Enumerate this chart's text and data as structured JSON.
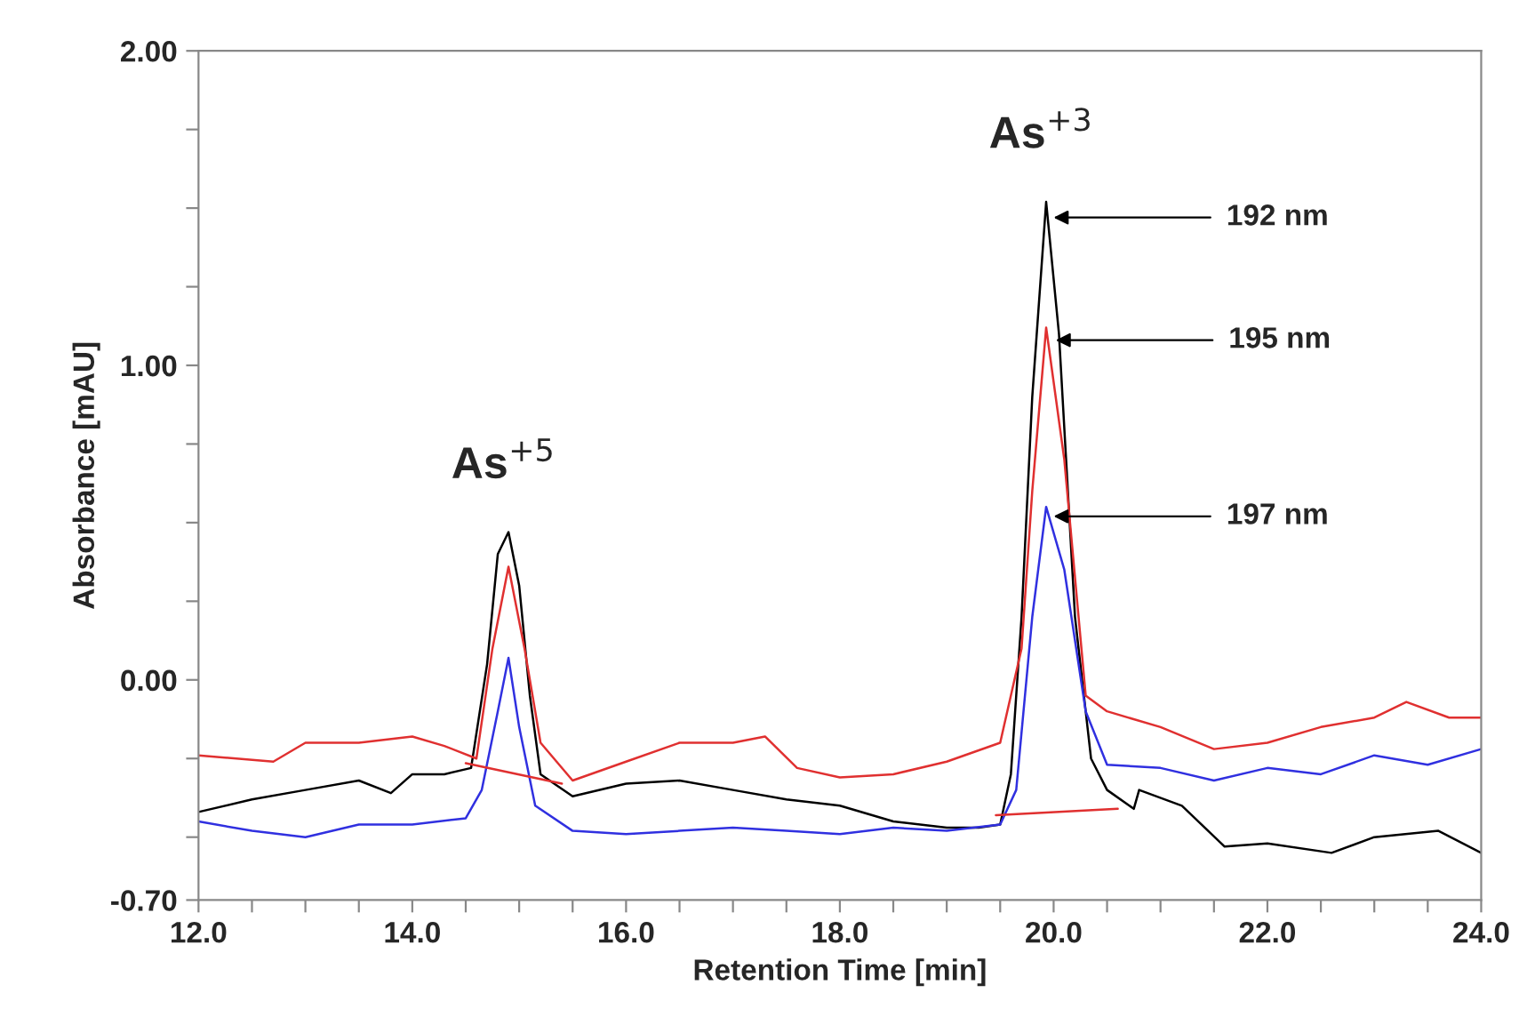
{
  "chart_data": {
    "type": "line",
    "xlabel": "Retention Time [min]",
    "ylabel": "Absorbance [mAU]",
    "xlim": [
      12.0,
      24.0
    ],
    "ylim": [
      -0.7,
      2.0
    ],
    "xticks": [
      {
        "value": 12.0,
        "label": "12.0"
      },
      {
        "value": 12.5,
        "label": null
      },
      {
        "value": 13.0,
        "label": null
      },
      {
        "value": 13.5,
        "label": null
      },
      {
        "value": 14.0,
        "label": "14.0"
      },
      {
        "value": 14.5,
        "label": null
      },
      {
        "value": 15.0,
        "label": null
      },
      {
        "value": 15.5,
        "label": null
      },
      {
        "value": 16.0,
        "label": "16.0"
      },
      {
        "value": 16.5,
        "label": null
      },
      {
        "value": 17.0,
        "label": null
      },
      {
        "value": 17.5,
        "label": null
      },
      {
        "value": 18.0,
        "label": "18.0"
      },
      {
        "value": 18.5,
        "label": null
      },
      {
        "value": 19.0,
        "label": null
      },
      {
        "value": 19.5,
        "label": null
      },
      {
        "value": 20.0,
        "label": "20.0"
      },
      {
        "value": 20.5,
        "label": null
      },
      {
        "value": 21.0,
        "label": null
      },
      {
        "value": 21.5,
        "label": null
      },
      {
        "value": 22.0,
        "label": "22.0"
      },
      {
        "value": 22.5,
        "label": null
      },
      {
        "value": 23.0,
        "label": null
      },
      {
        "value": 23.5,
        "label": null
      },
      {
        "value": 24.0,
        "label": "24.0"
      }
    ],
    "yticks": [
      {
        "value": -0.7,
        "label": "-0.70"
      },
      {
        "value": -0.5,
        "label": null
      },
      {
        "value": -0.25,
        "label": null
      },
      {
        "value": 0.0,
        "label": "0.00"
      },
      {
        "value": 0.25,
        "label": null
      },
      {
        "value": 0.5,
        "label": null
      },
      {
        "value": 0.75,
        "label": null
      },
      {
        "value": 1.0,
        "label": "1.00"
      },
      {
        "value": 1.25,
        "label": null
      },
      {
        "value": 1.5,
        "label": null
      },
      {
        "value": 1.75,
        "label": null
      },
      {
        "value": 2.0,
        "label": "2.00"
      }
    ],
    "grid": false,
    "legend": false,
    "series": [
      {
        "color": "#000000",
        "x": [
          12.0,
          12.5,
          13.0,
          13.5,
          13.8,
          14.0,
          14.3,
          14.55,
          14.7,
          14.8,
          14.9,
          15.0,
          15.1,
          15.2,
          15.5,
          16.0,
          16.5,
          17.0,
          17.5,
          18.0,
          18.5,
          19.0,
          19.3,
          19.5,
          19.6,
          19.7,
          19.8,
          19.93,
          20.05,
          20.2,
          20.35,
          20.5,
          20.75,
          20.8,
          21.2,
          21.6,
          22.0,
          22.6,
          23.0,
          23.6,
          24.0
        ],
        "values": [
          -0.42,
          -0.38,
          -0.35,
          -0.32,
          -0.36,
          -0.3,
          -0.3,
          -0.28,
          0.05,
          0.4,
          0.47,
          0.3,
          -0.05,
          -0.3,
          -0.37,
          -0.33,
          -0.32,
          -0.35,
          -0.38,
          -0.4,
          -0.45,
          -0.47,
          -0.47,
          -0.46,
          -0.3,
          0.2,
          0.9,
          1.52,
          1.1,
          0.2,
          -0.25,
          -0.35,
          -0.41,
          -0.35,
          -0.4,
          -0.53,
          -0.52,
          -0.55,
          -0.5,
          -0.48,
          -0.55
        ]
      },
      {
        "color": "#e03030",
        "x": [
          12.0,
          12.7,
          13.0,
          13.5,
          14.0,
          14.3,
          14.6,
          14.75,
          14.9,
          15.05,
          15.2,
          15.5,
          16.0,
          16.5,
          17.0,
          17.3,
          17.6,
          18.0,
          18.5,
          19.0,
          19.5,
          19.7,
          19.8,
          19.93,
          20.1,
          20.3,
          20.5,
          21.0,
          21.5,
          22.0,
          22.5,
          23.0,
          23.3,
          23.7,
          24.0
        ],
        "values": [
          -0.24,
          -0.26,
          -0.2,
          -0.2,
          -0.18,
          -0.21,
          -0.25,
          0.1,
          0.36,
          0.1,
          -0.2,
          -0.32,
          -0.26,
          -0.2,
          -0.2,
          -0.18,
          -0.28,
          -0.31,
          -0.3,
          -0.26,
          -0.2,
          0.1,
          0.6,
          1.12,
          0.7,
          -0.05,
          -0.1,
          -0.15,
          -0.22,
          -0.2,
          -0.15,
          -0.12,
          -0.07,
          -0.12,
          -0.12
        ]
      },
      {
        "color": "#3030e0",
        "x": [
          12.0,
          12.5,
          13.0,
          13.5,
          14.0,
          14.5,
          14.65,
          14.8,
          14.9,
          15.0,
          15.15,
          15.5,
          16.0,
          16.5,
          17.0,
          17.5,
          18.0,
          18.5,
          19.0,
          19.5,
          19.65,
          19.8,
          19.93,
          20.1,
          20.3,
          20.5,
          21.0,
          21.5,
          22.0,
          22.5,
          23.0,
          23.5,
          24.0
        ],
        "values": [
          -0.45,
          -0.48,
          -0.5,
          -0.46,
          -0.46,
          -0.44,
          -0.35,
          -0.1,
          0.07,
          -0.15,
          -0.4,
          -0.48,
          -0.49,
          -0.48,
          -0.47,
          -0.48,
          -0.49,
          -0.47,
          -0.48,
          -0.46,
          -0.35,
          0.2,
          0.55,
          0.35,
          -0.1,
          -0.27,
          -0.28,
          -0.32,
          -0.28,
          -0.3,
          -0.24,
          -0.27,
          -0.22
        ]
      },
      {
        "color": "#e03030",
        "x": [
          14.5,
          15.4
        ],
        "values": [
          -0.265,
          -0.33
        ]
      },
      {
        "color": "#e03030",
        "x": [
          19.46,
          20.6
        ],
        "values": [
          -0.43,
          -0.41
        ]
      }
    ],
    "annotations": [
      {
        "text": "As$^{+5}$",
        "x": 14.9,
        "y": 0.47
      },
      {
        "text": "As$^{+3}$",
        "x": 19.93,
        "y": 1.52
      },
      {
        "text": "192 nm",
        "x": 20.0,
        "y": 1.47
      },
      {
        "text": "195 nm",
        "x": 20.02,
        "y": 1.08
      },
      {
        "text": "197 nm",
        "x": 20.0,
        "y": 0.52
      }
    ]
  }
}
